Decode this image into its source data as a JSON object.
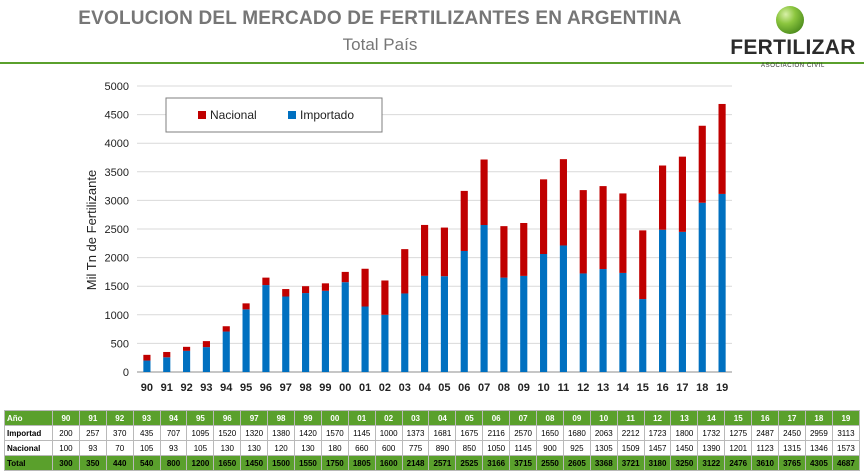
{
  "header": {
    "title": "EVOLUCION DEL MERCADO DE FERTILIZANTES EN ARGENTINA",
    "subtitle": "Total País"
  },
  "logo": {
    "name": "FERTILIZAR",
    "tagline": "ASOCIACION CIVIL"
  },
  "colors": {
    "nacional": "#c00000",
    "importado": "#0070c0",
    "accent": "#5aa02c"
  },
  "chart_data": {
    "type": "bar",
    "stacked": true,
    "ylabel": "Mil Tn de Fertilizante",
    "xlabel": "",
    "ylim": [
      0,
      5000
    ],
    "yticks": [
      0,
      500,
      1000,
      1500,
      2000,
      2500,
      3000,
      3500,
      4000,
      4500,
      5000
    ],
    "grid": true,
    "legend_position": "top-left",
    "categories": [
      "90",
      "91",
      "92",
      "93",
      "94",
      "95",
      "96",
      "97",
      "98",
      "99",
      "00",
      "01",
      "02",
      "03",
      "04",
      "05",
      "06",
      "07",
      "08",
      "09",
      "10",
      "11",
      "12",
      "13",
      "14",
      "15",
      "16",
      "17",
      "18",
      "19"
    ],
    "series": [
      {
        "name": "Importado",
        "color": "#0070c0",
        "values": [
          200,
          257,
          370,
          435,
          707,
          1095,
          1520,
          1320,
          1380,
          1420,
          1570,
          1145,
          1000,
          1373,
          1681,
          1675,
          2116,
          2570,
          1650,
          1680,
          2063,
          2212,
          1723,
          1800,
          1732,
          1275,
          2487,
          2450,
          2959,
          3113
        ]
      },
      {
        "name": "Nacional",
        "color": "#c00000",
        "values": [
          100,
          93,
          70,
          105,
          93,
          105,
          130,
          130,
          120,
          130,
          180,
          660,
          600,
          775,
          890,
          850,
          1050,
          1145,
          900,
          925,
          1305,
          1509,
          1457,
          1450,
          1390,
          1201,
          1123,
          1315,
          1346,
          1573
        ]
      }
    ]
  },
  "table": {
    "rows": [
      {
        "label": "Año",
        "style": "hdr",
        "values": [
          "90",
          "91",
          "92",
          "93",
          "94",
          "95",
          "96",
          "97",
          "98",
          "99",
          "00",
          "01",
          "02",
          "03",
          "04",
          "05",
          "06",
          "07",
          "08",
          "09",
          "10",
          "11",
          "12",
          "13",
          "14",
          "15",
          "16",
          "17",
          "18",
          "19"
        ]
      },
      {
        "label": "Importad",
        "style": "plain",
        "values": [
          "200",
          "257",
          "370",
          "435",
          "707",
          "1095",
          "1520",
          "1320",
          "1380",
          "1420",
          "1570",
          "1145",
          "1000",
          "1373",
          "1681",
          "1675",
          "2116",
          "2570",
          "1650",
          "1680",
          "2063",
          "2212",
          "1723",
          "1800",
          "1732",
          "1275",
          "2487",
          "2450",
          "2959",
          "3113"
        ]
      },
      {
        "label": "Nacional",
        "style": "plain",
        "values": [
          "100",
          "93",
          "70",
          "105",
          "93",
          "105",
          "130",
          "130",
          "120",
          "130",
          "180",
          "660",
          "600",
          "775",
          "890",
          "850",
          "1050",
          "1145",
          "900",
          "925",
          "1305",
          "1509",
          "1457",
          "1450",
          "1390",
          "1201",
          "1123",
          "1315",
          "1346",
          "1573"
        ]
      },
      {
        "label": "Total",
        "style": "tot",
        "values": [
          "300",
          "350",
          "440",
          "540",
          "800",
          "1200",
          "1650",
          "1450",
          "1500",
          "1550",
          "1750",
          "1805",
          "1600",
          "2148",
          "2571",
          "2525",
          "3166",
          "3715",
          "2550",
          "2605",
          "3368",
          "3721",
          "3180",
          "3250",
          "3122",
          "2476",
          "3610",
          "3765",
          "4305",
          "4687"
        ]
      }
    ]
  }
}
